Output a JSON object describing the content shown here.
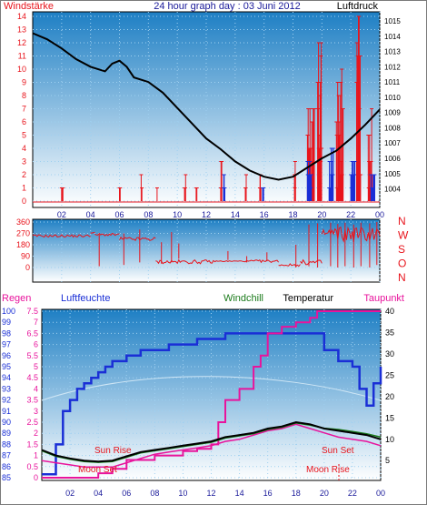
{
  "title": "24 hour graph day : 03 Juni 2012",
  "colors": {
    "red": "#e8141c",
    "blue": "#1a2fd6",
    "black": "#000000",
    "magenta": "#e8149c",
    "green": "#1a7a1a",
    "darkblue": "#1a1a9a",
    "panel_top": "#1e7fc4",
    "panel_bottom": "#ffffff",
    "grid_dot": "#9fd0f0"
  },
  "chart_data": [
    {
      "type": "line",
      "name": "wind-pressure",
      "left_label": "Windstärke",
      "right_label": "Luftdruck",
      "x_ticks": [
        "02",
        "04",
        "06",
        "08",
        "10",
        "12",
        "14",
        "16",
        "18",
        "20",
        "22",
        "00"
      ],
      "y_left_ticks": [
        "0",
        "1",
        "2",
        "3",
        "4",
        "5",
        "6",
        "7",
        "8",
        "9",
        "10",
        "11",
        "12",
        "13",
        "14"
      ],
      "y_left_range": [
        0,
        14
      ],
      "y_right_ticks": [
        "1004",
        "1005",
        "1006",
        "1007",
        "1008",
        "1009",
        "1010",
        "1011",
        "1012",
        "1013",
        "1014",
        "1015"
      ],
      "y_right_range": [
        1003.2,
        1015.3
      ],
      "pressure": {
        "x": [
          0,
          1,
          2,
          3,
          4,
          5,
          5.5,
          6,
          6.5,
          7,
          8,
          9,
          10,
          11,
          12,
          13,
          14,
          15,
          16,
          17,
          18,
          19,
          20,
          21,
          22,
          23,
          24
        ],
        "y": [
          1014.2,
          1013.8,
          1013.2,
          1012.5,
          1012.0,
          1011.7,
          1012.2,
          1012.4,
          1012.0,
          1011.3,
          1011.0,
          1010.3,
          1009.3,
          1008.3,
          1007.3,
          1006.6,
          1005.8,
          1005.2,
          1004.8,
          1004.6,
          1004.8,
          1005.4,
          1006.0,
          1006.5,
          1007.3,
          1008.2,
          1009.2
        ]
      },
      "gust_bursts": [
        [
          2,
          0.1,
          1,
          9
        ],
        [
          6,
          0.1,
          3,
          2
        ],
        [
          7.5,
          0.1,
          2,
          2
        ],
        [
          8.6,
          0.1,
          1,
          1
        ],
        [
          10.5,
          0.1,
          2,
          4
        ],
        [
          11.3,
          0.1,
          1,
          2
        ],
        [
          13,
          0.1,
          3,
          4
        ],
        [
          14.7,
          0.1,
          2,
          3
        ],
        [
          15.7,
          0.1,
          2,
          5
        ],
        [
          18.1,
          0.1,
          3,
          4
        ],
        [
          19,
          0.5,
          8,
          20
        ],
        [
          19.7,
          0.3,
          12,
          14
        ],
        [
          21,
          0.5,
          10,
          16
        ],
        [
          22.4,
          0.3,
          14,
          12
        ],
        [
          23.2,
          0.3,
          9,
          10
        ]
      ],
      "speed_bursts": [
        [
          13.2,
          0.1,
          2,
          5
        ],
        [
          15.9,
          0.1,
          2,
          3
        ],
        [
          19,
          0.3,
          3,
          10
        ],
        [
          20.5,
          0.3,
          4,
          12
        ],
        [
          22,
          0.3,
          3,
          10
        ],
        [
          23.4,
          0.3,
          2,
          6
        ]
      ]
    },
    {
      "type": "scatter",
      "name": "wind-direction",
      "y_ticks": [
        "0",
        "90",
        "180",
        "270",
        "360"
      ],
      "y_range": [
        0,
        360
      ],
      "compass_labels": [
        "N",
        "W",
        "S",
        "O",
        "N"
      ],
      "dir_segments": [
        [
          0,
          4,
          240,
          260
        ],
        [
          4,
          4.3,
          270,
          280
        ],
        [
          4.3,
          6,
          250,
          270
        ],
        [
          6,
          8.5,
          210,
          240
        ],
        [
          8.5,
          12.5,
          30,
          60
        ],
        [
          12.5,
          15,
          45,
          55
        ],
        [
          15,
          17,
          40,
          60
        ],
        [
          17,
          18.5,
          10,
          30
        ],
        [
          18.5,
          20,
          20,
          60
        ],
        [
          20,
          24,
          200,
          330
        ]
      ],
      "dir_spikes": [
        [
          4.6,
          260,
          10
        ],
        [
          6.3,
          270,
          20
        ],
        [
          7.4,
          300,
          40
        ],
        [
          8.9,
          200,
          30
        ],
        [
          9.6,
          280,
          40
        ],
        [
          10.1,
          190,
          70
        ],
        [
          13.5,
          130,
          60
        ],
        [
          14.8,
          90,
          40
        ],
        [
          16.2,
          120,
          50
        ],
        [
          18.2,
          180,
          0
        ],
        [
          19.1,
          340,
          10
        ],
        [
          19.7,
          350,
          0
        ],
        [
          20.6,
          355,
          10
        ],
        [
          21.1,
          345,
          0
        ],
        [
          21.6,
          355,
          10
        ],
        [
          22.2,
          340,
          0
        ],
        [
          22.7,
          355,
          10
        ],
        [
          23.3,
          350,
          0
        ],
        [
          23.8,
          360,
          20
        ]
      ]
    },
    {
      "type": "line",
      "name": "temp-humidity",
      "legend": [
        {
          "label": "Regen",
          "color": "#e8149c"
        },
        {
          "label": "Luftfeuchte",
          "color": "#1a2fd6"
        },
        {
          "label": "Windchill",
          "color": "#1a7a1a"
        },
        {
          "label": "Temperatur",
          "color": "#000000"
        },
        {
          "label": "Taupunkt",
          "color": "#e8149c"
        }
      ],
      "y_hum_ticks": [
        "85",
        "86",
        "87",
        "88",
        "89",
        "90",
        "91",
        "92",
        "93",
        "94",
        "95",
        "96",
        "97",
        "98",
        "99",
        "100"
      ],
      "y_hum_range": [
        85,
        100
      ],
      "y_rain_ticks": [
        "0",
        "0.5",
        "1",
        "1.5",
        "2",
        "2.5",
        "3",
        "3.5",
        "4",
        "4.5",
        "5",
        "5.5",
        "6",
        "6.5",
        "7",
        "7.5"
      ],
      "y_temp_ticks": [
        "5",
        "10",
        "15",
        "20",
        "25",
        "30",
        "35",
        "40"
      ],
      "y_temp_range": [
        1,
        40
      ],
      "annotations": {
        "sun_rise": "Sun Rise",
        "sun_set": "Sun Set",
        "moon_set": "Moon Set",
        "moon_rise": "Moon Rise"
      },
      "humidity": {
        "x": [
          0,
          1,
          1.5,
          2,
          2.5,
          3,
          3.5,
          4,
          4.5,
          5,
          5.5,
          6,
          6.5,
          7,
          8,
          9,
          10,
          11,
          12,
          13,
          14,
          15,
          16,
          17,
          18,
          19,
          20,
          21,
          22,
          22.5,
          23,
          23.5,
          24
        ],
        "y": [
          85.3,
          88,
          91,
          92,
          93,
          93.5,
          94,
          94.5,
          95,
          95.5,
          95.5,
          96,
          96,
          96.5,
          96.5,
          97,
          97,
          97.5,
          97.5,
          98,
          98,
          98,
          98,
          98,
          98,
          98,
          96.5,
          95.5,
          95,
          93,
          91.5,
          93.5,
          95
        ]
      },
      "temperature": {
        "x": [
          0,
          1,
          2,
          3,
          4,
          5,
          6,
          7,
          8,
          9,
          10,
          11,
          12,
          13,
          14,
          15,
          16,
          17,
          18,
          19,
          20,
          21,
          22,
          23,
          24
        ],
        "y": [
          7.5,
          6.2,
          5.5,
          5.0,
          4.8,
          5.0,
          6.0,
          7.0,
          7.5,
          8.0,
          8.5,
          9.0,
          9.5,
          10.5,
          11.0,
          11.5,
          12.5,
          13.0,
          14.0,
          13.5,
          12.5,
          12.0,
          11.5,
          11.0,
          10.0
        ]
      },
      "windchill": {
        "x": [
          0,
          1,
          2,
          3,
          4,
          5,
          6,
          7,
          8,
          9,
          10,
          11,
          12,
          13,
          14,
          15,
          16,
          17,
          18,
          19,
          20,
          21,
          22,
          23,
          24
        ],
        "y": [
          7.3,
          6.0,
          5.3,
          4.8,
          4.6,
          4.8,
          5.8,
          6.8,
          7.3,
          7.8,
          8.3,
          8.8,
          9.3,
          10.3,
          10.8,
          11.3,
          12.3,
          12.8,
          13.8,
          13.3,
          12.6,
          12.3,
          11.8,
          11.3,
          10.5
        ]
      },
      "dewpoint": {
        "x": [
          0,
          1,
          2,
          3,
          4,
          5,
          6,
          7,
          8,
          9,
          10,
          11,
          12,
          13,
          14,
          15,
          16,
          17,
          18,
          19,
          20,
          21,
          22,
          23,
          24
        ],
        "y": [
          5.0,
          4.5,
          4.0,
          3.5,
          3.5,
          3.5,
          4.5,
          5.5,
          6.5,
          7.0,
          7.5,
          8.0,
          8.5,
          9.5,
          10.0,
          11.0,
          12.0,
          12.5,
          13.5,
          12.5,
          11.5,
          10.5,
          10.0,
          9.5,
          8.5
        ]
      },
      "rain": {
        "x": [
          0,
          3,
          4,
          5,
          6,
          8,
          10,
          11,
          12,
          12.5,
          13,
          14,
          15,
          15.5,
          16,
          17,
          18,
          19,
          19.5,
          20,
          20.5,
          24
        ],
        "y": [
          0,
          0,
          0.2,
          0.4,
          0.8,
          1.0,
          1.2,
          1.3,
          1.5,
          2.5,
          3.5,
          4.0,
          5.0,
          5.5,
          6.5,
          6.8,
          7.0,
          7.2,
          7.5,
          7.5,
          7.5,
          7.5
        ]
      }
    }
  ]
}
